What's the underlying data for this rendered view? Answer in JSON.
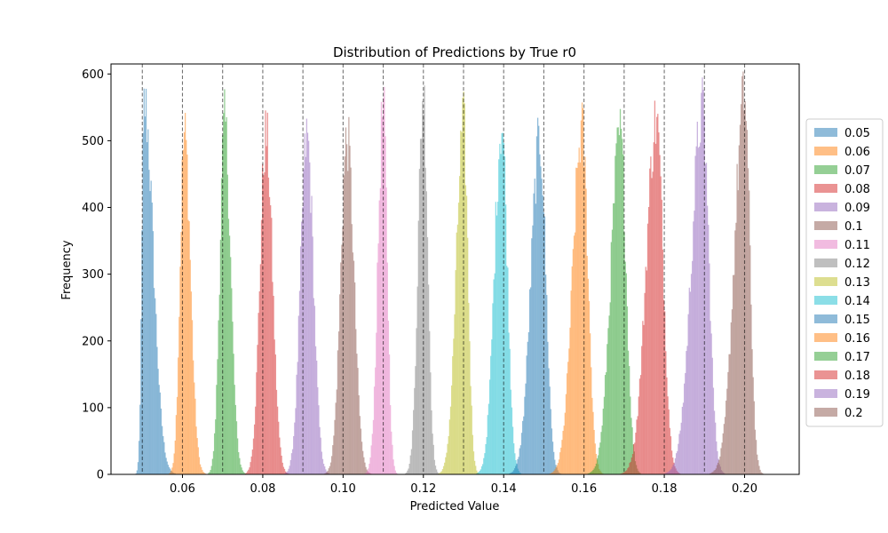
{
  "chart_data": {
    "type": "histogram",
    "title": "Distribution of Predictions by True r0",
    "xlabel": "Predicted Value",
    "ylabel": "Frequency",
    "xlim": [
      0.0422,
      0.2136
    ],
    "ylim": [
      0,
      615
    ],
    "xticks": [
      0.06,
      0.08,
      0.1,
      0.12,
      0.14,
      0.16,
      0.18,
      0.2
    ],
    "xtick_labels": [
      "0.06",
      "0.08",
      "0.10",
      "0.12",
      "0.14",
      "0.16",
      "0.18",
      "0.20"
    ],
    "yticks": [
      0,
      100,
      200,
      300,
      400,
      500,
      600
    ],
    "ytick_labels": [
      "0",
      "100",
      "200",
      "300",
      "400",
      "500",
      "600"
    ],
    "grid": false,
    "legend_position": "right",
    "reference_lines": [
      0.05,
      0.06,
      0.07,
      0.08,
      0.09,
      0.1,
      0.11,
      0.12,
      0.13,
      0.14,
      0.15,
      0.16,
      0.17,
      0.18,
      0.19,
      0.2
    ],
    "series": [
      {
        "name": "0.05",
        "color": "#1f77b4",
        "center": 0.0505,
        "sd_left": 0.0006,
        "sd_right": 0.0022,
        "peak": 556
      },
      {
        "name": "0.06",
        "color": "#ff7f0e",
        "center": 0.0605,
        "sd_left": 0.0011,
        "sd_right": 0.0015,
        "peak": 510
      },
      {
        "name": "0.07",
        "color": "#2ca02c",
        "center": 0.0705,
        "sd_left": 0.0012,
        "sd_right": 0.0015,
        "peak": 525
      },
      {
        "name": "0.08",
        "color": "#d62728",
        "center": 0.0808,
        "sd_left": 0.0015,
        "sd_right": 0.0016,
        "peak": 508
      },
      {
        "name": "0.09",
        "color": "#9467bd",
        "center": 0.091,
        "sd_left": 0.0016,
        "sd_right": 0.0016,
        "peak": 505
      },
      {
        "name": "0.1",
        "color": "#8c564b",
        "center": 0.101,
        "sd_left": 0.0016,
        "sd_right": 0.0017,
        "peak": 503
      },
      {
        "name": "0.11",
        "color": "#e377c2",
        "center": 0.11,
        "sd_left": 0.0013,
        "sd_right": 0.001,
        "peak": 550
      },
      {
        "name": "0.12",
        "color": "#7f7f7f",
        "center": 0.12,
        "sd_left": 0.0013,
        "sd_right": 0.0011,
        "peak": 570
      },
      {
        "name": "0.13",
        "color": "#bcbd22",
        "center": 0.13,
        "sd_left": 0.0018,
        "sd_right": 0.0011,
        "peak": 525
      },
      {
        "name": "0.14",
        "color": "#17becf",
        "center": 0.1395,
        "sd_left": 0.0018,
        "sd_right": 0.0014,
        "peak": 525
      },
      {
        "name": "0.15",
        "color": "#1f77b4",
        "center": 0.149,
        "sd_left": 0.0022,
        "sd_right": 0.0015,
        "peak": 500
      },
      {
        "name": "0.16",
        "color": "#ff7f0e",
        "center": 0.1595,
        "sd_left": 0.0023,
        "sd_right": 0.0015,
        "peak": 515
      },
      {
        "name": "0.17",
        "color": "#2ca02c",
        "center": 0.169,
        "sd_left": 0.0023,
        "sd_right": 0.0015,
        "peak": 508
      },
      {
        "name": "0.18",
        "color": "#d62728",
        "center": 0.178,
        "sd_left": 0.0025,
        "sd_right": 0.0017,
        "peak": 530
      },
      {
        "name": "0.19",
        "color": "#9467bd",
        "center": 0.1895,
        "sd_left": 0.0027,
        "sd_right": 0.0016,
        "peak": 545
      },
      {
        "name": "0.2",
        "color": "#8c564b",
        "center": 0.2,
        "sd_left": 0.0025,
        "sd_right": 0.0013,
        "peak": 566
      }
    ]
  }
}
